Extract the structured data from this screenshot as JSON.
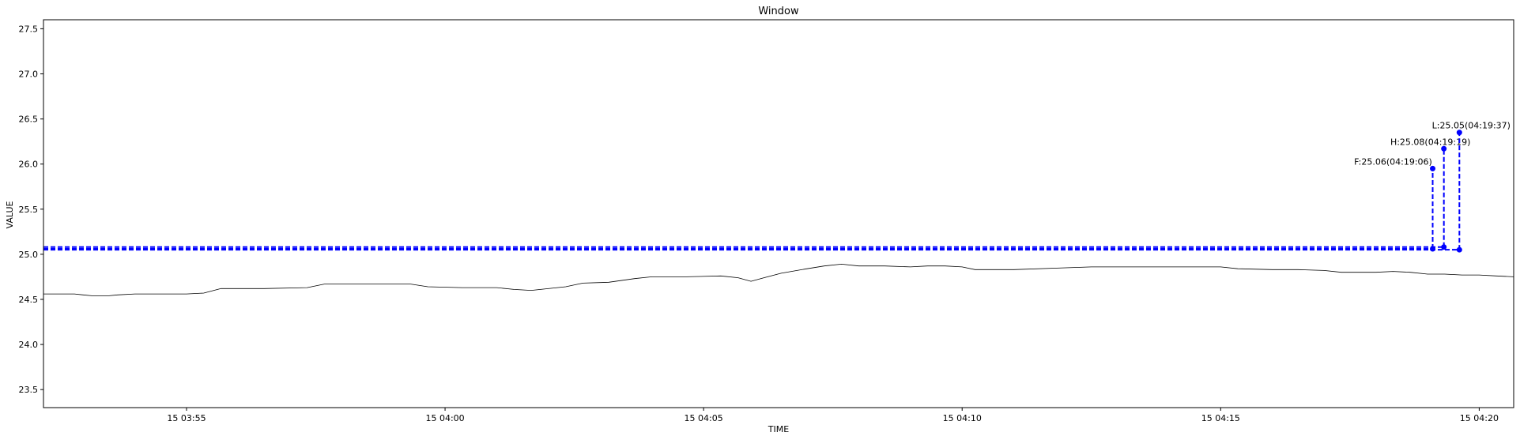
{
  "chart_data": {
    "type": "line",
    "title": "Window",
    "xlabel": "TIME",
    "ylabel": "VALUE",
    "xlim": [
      "03:52:14",
      "04:20:40"
    ],
    "ylim": [
      23.3,
      27.6
    ],
    "y_ticks": [
      23.5,
      24.0,
      24.5,
      25.0,
      25.5,
      26.0,
      26.5,
      27.0,
      27.5
    ],
    "y_tick_labels": [
      "23.5",
      "24.0",
      "24.5",
      "25.0",
      "25.5",
      "26.0",
      "26.5",
      "27.0",
      "27.5"
    ],
    "x_ticks": [
      "03:55:00",
      "04:00:00",
      "04:05:00",
      "04:10:00",
      "04:15:00",
      "04:20:00"
    ],
    "x_tick_labels": [
      "15 03:55",
      "15 04:00",
      "15 04:05",
      "15 04:10",
      "15 04:15",
      "15 04:20"
    ],
    "grid": false,
    "series": [
      {
        "color": "#000000",
        "points": [
          [
            "03:52:14",
            24.56
          ],
          [
            "03:52:50",
            24.56
          ],
          [
            "03:53:00",
            24.55
          ],
          [
            "03:53:10",
            24.54
          ],
          [
            "03:53:30",
            24.54
          ],
          [
            "03:53:40",
            24.55
          ],
          [
            "03:54:00",
            24.56
          ],
          [
            "03:54:30",
            24.56
          ],
          [
            "03:55:00",
            24.56
          ],
          [
            "03:55:20",
            24.57
          ],
          [
            "03:55:40",
            24.62
          ],
          [
            "03:56:30",
            24.62
          ],
          [
            "03:57:20",
            24.63
          ],
          [
            "03:57:40",
            24.67
          ],
          [
            "03:58:30",
            24.67
          ],
          [
            "03:59:20",
            24.67
          ],
          [
            "03:59:40",
            24.64
          ],
          [
            "04:00:20",
            24.63
          ],
          [
            "04:01:00",
            24.63
          ],
          [
            "04:01:20",
            24.61
          ],
          [
            "04:01:40",
            24.6
          ],
          [
            "04:02:20",
            24.64
          ],
          [
            "04:02:40",
            24.68
          ],
          [
            "04:03:10",
            24.69
          ],
          [
            "04:03:40",
            24.73
          ],
          [
            "04:04:00",
            24.75
          ],
          [
            "04:04:40",
            24.75
          ],
          [
            "04:05:20",
            24.76
          ],
          [
            "04:05:40",
            24.74
          ],
          [
            "04:05:55",
            24.7
          ],
          [
            "04:06:10",
            24.74
          ],
          [
            "04:06:30",
            24.79
          ],
          [
            "04:07:00",
            24.84
          ],
          [
            "04:07:20",
            24.87
          ],
          [
            "04:07:40",
            24.89
          ],
          [
            "04:08:00",
            24.87
          ],
          [
            "04:08:30",
            24.87
          ],
          [
            "04:09:00",
            24.86
          ],
          [
            "04:09:20",
            24.87
          ],
          [
            "04:09:40",
            24.87
          ],
          [
            "04:10:00",
            24.86
          ],
          [
            "04:10:15",
            24.83
          ],
          [
            "04:11:00",
            24.83
          ],
          [
            "04:12:00",
            24.85
          ],
          [
            "04:12:30",
            24.86
          ],
          [
            "04:14:00",
            24.86
          ],
          [
            "04:15:00",
            24.86
          ],
          [
            "04:15:20",
            24.84
          ],
          [
            "04:16:00",
            24.83
          ],
          [
            "04:16:30",
            24.83
          ],
          [
            "04:17:00",
            24.82
          ],
          [
            "04:17:20",
            24.8
          ],
          [
            "04:17:40",
            24.8
          ],
          [
            "04:18:00",
            24.8
          ],
          [
            "04:18:20",
            24.81
          ],
          [
            "04:18:40",
            24.8
          ],
          [
            "04:19:00",
            24.78
          ],
          [
            "04:19:20",
            24.78
          ],
          [
            "04:19:40",
            24.77
          ],
          [
            "04:20:00",
            24.77
          ],
          [
            "04:20:20",
            24.76
          ],
          [
            "04:20:40",
            24.75
          ]
        ]
      }
    ],
    "markers": [
      {
        "label": "F:25.06(04:19:06)",
        "x": "04:19:06",
        "y": 25.06,
        "color": "#0000ff"
      },
      {
        "label": "H:25.08(04:19:19)",
        "x": "04:19:19",
        "y": 25.08,
        "color": "#0000ff"
      },
      {
        "label": "L:25.05(04:19:37)",
        "x": "04:19:37",
        "y": 25.05,
        "color": "#0000ff"
      }
    ],
    "marker_color": "#0000ff",
    "line_color": "#000000"
  }
}
